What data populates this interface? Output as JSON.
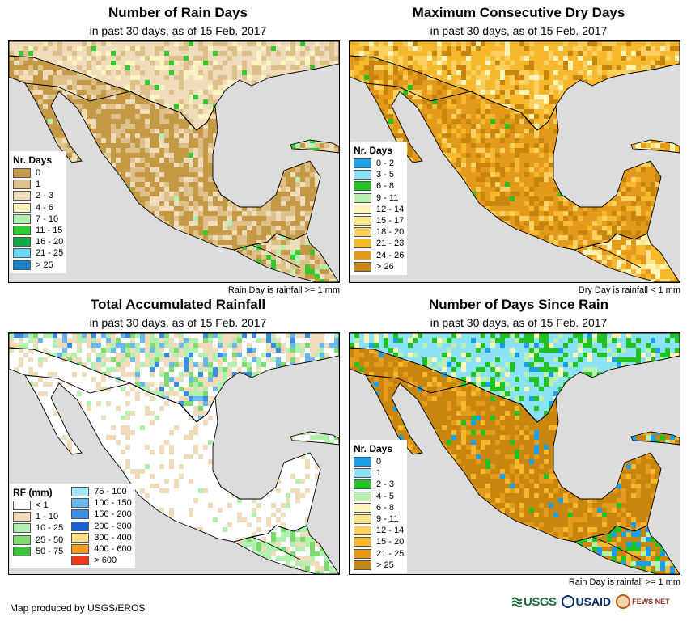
{
  "panels": {
    "rain_days": {
      "title": "Number of Rain Days",
      "subtitle": "in past 30 days, as of 15 Feb. 2017",
      "note": "Rain Day is rainfall >= 1 mm",
      "legend_title": "Nr. Days",
      "legend": [
        {
          "label": "0",
          "color": "#c49a46"
        },
        {
          "label": "1",
          "color": "#dec08a"
        },
        {
          "label": "2 - 3",
          "color": "#f0dcba"
        },
        {
          "label": "4 - 6",
          "color": "#f8f3c0"
        },
        {
          "label": "7 - 10",
          "color": "#b2f0b0"
        },
        {
          "label": "11 - 15",
          "color": "#2ecc2e"
        },
        {
          "label": "16 - 20",
          "color": "#10a84a"
        },
        {
          "label": "21 - 25",
          "color": "#6ad8f2"
        },
        {
          "label": "> 25",
          "color": "#1a84c8"
        }
      ]
    },
    "dry_days": {
      "title": "Maximum Consecutive Dry Days",
      "subtitle": "in past 30 days, as of 15 Feb. 2017",
      "note": "Dry Day is rainfall < 1 mm",
      "legend_title": "Nr. Days",
      "legend": [
        {
          "label": "0 - 2",
          "color": "#1aa0e8"
        },
        {
          "label": "3 - 5",
          "color": "#8ae2f4"
        },
        {
          "label": "6 - 8",
          "color": "#22c222"
        },
        {
          "label": "9 - 11",
          "color": "#b8f0b2"
        },
        {
          "label": "12 - 14",
          "color": "#fff5b8"
        },
        {
          "label": "15 - 17",
          "color": "#fde48a"
        },
        {
          "label": "18 - 20",
          "color": "#fcd060"
        },
        {
          "label": "21 - 23",
          "color": "#f6b82c"
        },
        {
          "label": "24 - 26",
          "color": "#e49a1a"
        },
        {
          "label": "> 26",
          "color": "#c8860e"
        }
      ]
    },
    "rainfall": {
      "title": "Total Accumulated Rainfall",
      "subtitle": "in past 30 days, as of 15 Feb. 2017",
      "legend_title": "RF (mm)",
      "legend_col1": [
        {
          "label": "< 1",
          "color": "#ffffff"
        },
        {
          "label": "1 - 10",
          "color": "#f0dcba"
        },
        {
          "label": "10 - 25",
          "color": "#b2f0b0"
        },
        {
          "label": "25 - 50",
          "color": "#7cdc6e"
        },
        {
          "label": "50 - 75",
          "color": "#3cc23c"
        }
      ],
      "legend_col2": [
        {
          "label": "75 - 100",
          "color": "#9ee6f6"
        },
        {
          "label": "100 - 150",
          "color": "#6ab8f0"
        },
        {
          "label": "150 - 200",
          "color": "#3a8ee6"
        },
        {
          "label": "200 - 300",
          "color": "#1860d0"
        },
        {
          "label": "300 - 400",
          "color": "#fde28a"
        },
        {
          "label": "400 - 600",
          "color": "#f49a1c"
        },
        {
          "label": "> 600",
          "color": "#ee3a1a"
        }
      ]
    },
    "since_rain": {
      "title": "Number of Days Since Rain",
      "subtitle": "in past 30 days, as of 15 Feb. 2017",
      "note": "Rain Day is rainfall >= 1 mm",
      "legend_title": "Nr. Days",
      "legend": [
        {
          "label": "0",
          "color": "#1aa0e8"
        },
        {
          "label": "1",
          "color": "#8ae2f4"
        },
        {
          "label": "2 - 3",
          "color": "#22c222"
        },
        {
          "label": "4 - 5",
          "color": "#b8f0b2"
        },
        {
          "label": "6 - 8",
          "color": "#fff5b8"
        },
        {
          "label": "9 - 11",
          "color": "#fde48a"
        },
        {
          "label": "12 - 14",
          "color": "#fcd060"
        },
        {
          "label": "15 - 20",
          "color": "#f6b82c"
        },
        {
          "label": "21 - 25",
          "color": "#e49a1a"
        },
        {
          "label": "> 25",
          "color": "#c8860e"
        }
      ]
    }
  },
  "footer": {
    "credit": "Map produced by USGS/EROS",
    "logos": {
      "usgs": "USGS",
      "usaid": "USAID",
      "fews": "FEWS NET"
    }
  },
  "colors": {
    "ocean": "#dcdcdc",
    "rain_days_base": "#c49a46",
    "dry_days_base": "#e49a1a",
    "rainfall_base": "#ffffff",
    "since_rain_base": "#c8860e"
  }
}
